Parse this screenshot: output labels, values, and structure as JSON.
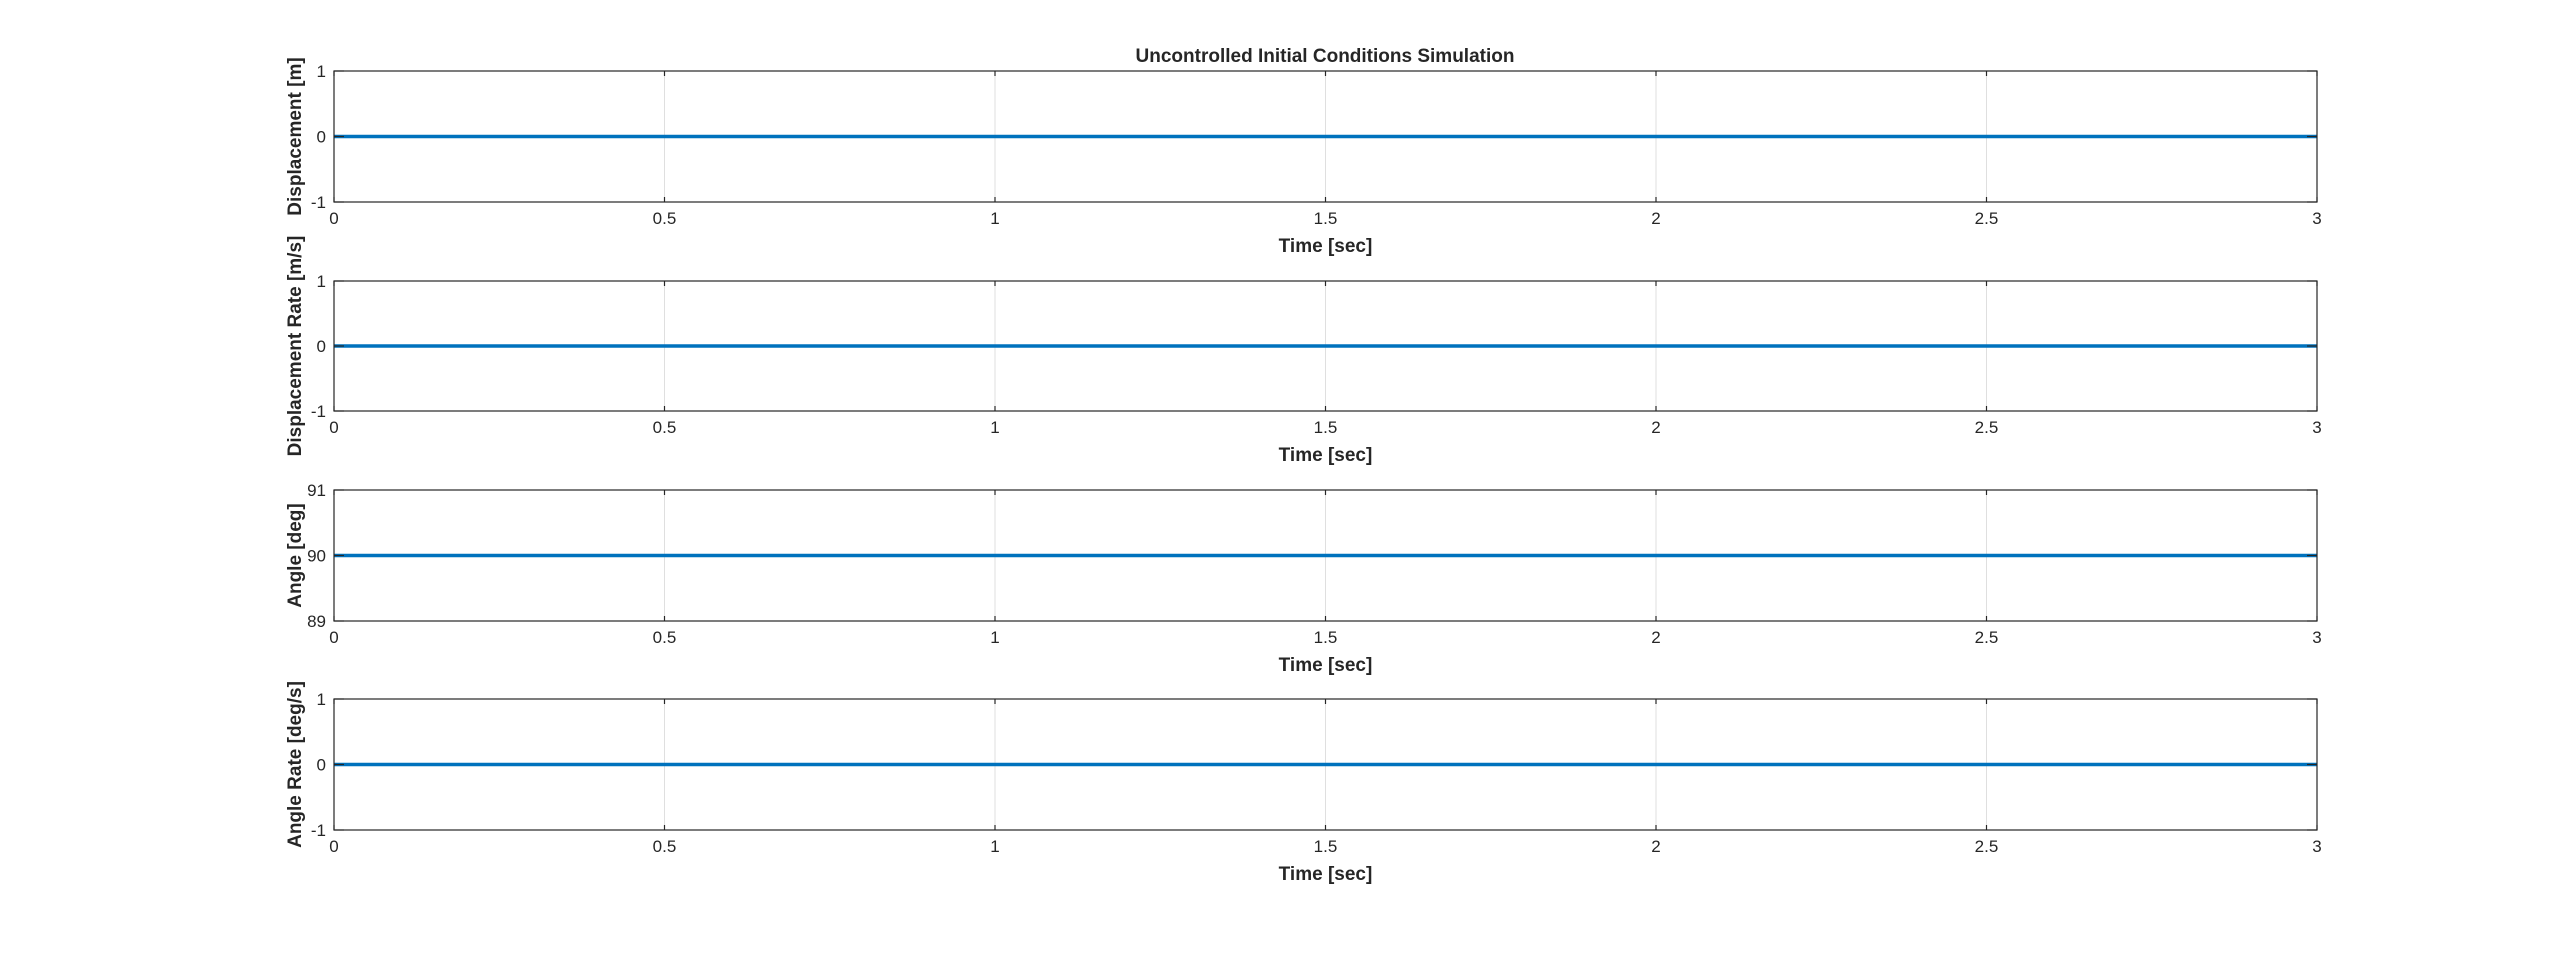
{
  "figure": {
    "title": "Uncontrolled Initial Conditions Simulation"
  },
  "chart_data": [
    {
      "type": "line",
      "title": "Uncontrolled Initial Conditions Simulation",
      "xlabel": "Time [sec]",
      "ylabel": "Displacement [m]",
      "xlim": [
        0,
        3
      ],
      "ylim": [
        -1,
        1
      ],
      "xticks": [
        "0",
        "0.5",
        "1",
        "1.5",
        "2",
        "2.5",
        "3"
      ],
      "yticks": [
        "-1",
        "0",
        "1"
      ],
      "grid": "x",
      "series": [
        {
          "x": [
            0,
            3
          ],
          "y": [
            0,
            0
          ],
          "color": "#0072BD"
        }
      ]
    },
    {
      "type": "line",
      "xlabel": "Time [sec]",
      "ylabel": "Displacement Rate [m/s]",
      "xlim": [
        0,
        3
      ],
      "ylim": [
        -1,
        1
      ],
      "xticks": [
        "0",
        "0.5",
        "1",
        "1.5",
        "2",
        "2.5",
        "3"
      ],
      "yticks": [
        "-1",
        "0",
        "1"
      ],
      "grid": "x",
      "series": [
        {
          "x": [
            0,
            3
          ],
          "y": [
            0,
            0
          ],
          "color": "#0072BD"
        }
      ]
    },
    {
      "type": "line",
      "xlabel": "Time [sec]",
      "ylabel": "Angle [deg]",
      "xlim": [
        0,
        3
      ],
      "ylim": [
        89,
        91
      ],
      "xticks": [
        "0",
        "0.5",
        "1",
        "1.5",
        "2",
        "2.5",
        "3"
      ],
      "yticks": [
        "89",
        "90",
        "91"
      ],
      "grid": "x",
      "series": [
        {
          "x": [
            0,
            3
          ],
          "y": [
            90,
            90
          ],
          "color": "#0072BD"
        }
      ]
    },
    {
      "type": "line",
      "xlabel": "Time [sec]",
      "ylabel": "Angle Rate [deg/s]",
      "xlim": [
        0,
        3
      ],
      "ylim": [
        -1,
        1
      ],
      "xticks": [
        "0",
        "0.5",
        "1",
        "1.5",
        "2",
        "2.5",
        "3"
      ],
      "yticks": [
        "-1",
        "0",
        "1"
      ],
      "grid": "x",
      "series": [
        {
          "x": [
            0,
            3
          ],
          "y": [
            0,
            0
          ],
          "color": "#0072BD"
        }
      ]
    }
  ]
}
